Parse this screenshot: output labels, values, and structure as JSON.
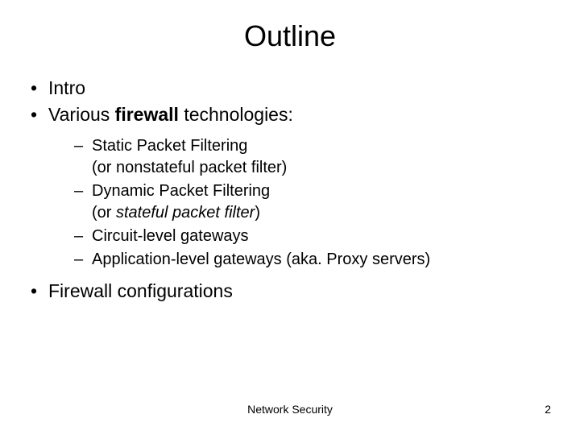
{
  "slide": {
    "title": "Outline",
    "bullets_level1": {
      "item0": "Intro",
      "item1_pre": "Various ",
      "item1_bold": "firewall",
      "item1_post": " technologies:",
      "item2": "Firewall configurations"
    },
    "bullets_level2": {
      "item0_line1": "Static Packet Filtering",
      "item0_line2": "(or nonstateful packet filter)",
      "item1_line1": "Dynamic Packet Filtering",
      "item1_line2_pre": "(or ",
      "item1_line2_italic": "stateful packet filter",
      "item1_line2_post": ")",
      "item2": "Circuit-level gateways",
      "item3": "Application-level gateways (aka. Proxy servers)"
    },
    "footer": {
      "center": "Network Security",
      "page_number": "2"
    }
  },
  "styling": {
    "background_color": "#ffffff",
    "text_color": "#000000",
    "title_fontsize": 36,
    "body_fontsize": 23,
    "sub_fontsize": 20,
    "footer_fontsize": 14,
    "font_family": "Arial"
  }
}
